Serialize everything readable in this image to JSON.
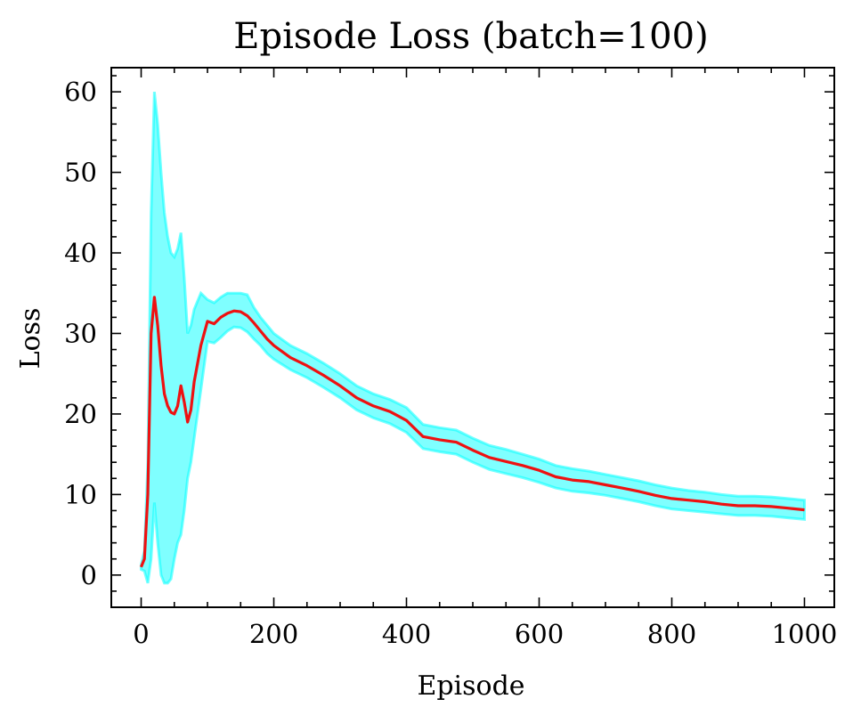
{
  "chart_data": {
    "type": "line",
    "title": "Episode Loss (batch=100)",
    "xlabel": "Episode",
    "ylabel": "Loss",
    "xlim": [
      -45,
      1045
    ],
    "ylim": [
      -4,
      63
    ],
    "xticks": [
      0,
      200,
      400,
      600,
      800,
      1000
    ],
    "yticks": [
      0,
      10,
      20,
      30,
      40,
      50,
      60
    ],
    "x_minor_step": 50,
    "y_minor_step": 2,
    "grid": false,
    "colors": {
      "mean": "#ee1111",
      "band": "#00ffff"
    },
    "series": [
      {
        "style": "line",
        "x": [
          0,
          5,
          10,
          15,
          20,
          25,
          30,
          35,
          40,
          45,
          50,
          55,
          60,
          65,
          70,
          75,
          80,
          90,
          100,
          110,
          120,
          130,
          140,
          150,
          160,
          170,
          180,
          190,
          200,
          225,
          250,
          275,
          300,
          325,
          350,
          375,
          400,
          425,
          450,
          475,
          500,
          525,
          550,
          575,
          600,
          625,
          650,
          675,
          700,
          725,
          750,
          775,
          800,
          825,
          850,
          875,
          900,
          925,
          950,
          975,
          1000
        ],
        "y": [
          1,
          2,
          10,
          30,
          34.5,
          31,
          26,
          22.5,
          21,
          20.2,
          20,
          21,
          23.5,
          21.5,
          19,
          20.5,
          24,
          28.5,
          31.5,
          31.2,
          32,
          32.5,
          32.8,
          32.7,
          32.2,
          31.3,
          30.3,
          29.3,
          28.5,
          27,
          26,
          24.8,
          23.5,
          22,
          21,
          20.3,
          19.2,
          17.2,
          16.8,
          16.5,
          15.5,
          14.6,
          14.1,
          13.6,
          13,
          12.2,
          11.8,
          11.6,
          11.2,
          10.8,
          10.4,
          9.9,
          9.5,
          9.3,
          9.1,
          8.8,
          8.6,
          8.6,
          8.5,
          8.3,
          8.1
        ]
      },
      {
        "style": "band",
        "x": [
          0,
          5,
          10,
          15,
          20,
          25,
          30,
          35,
          40,
          45,
          50,
          55,
          60,
          65,
          70,
          75,
          80,
          90,
          100,
          110,
          120,
          130,
          140,
          150,
          160,
          170,
          180,
          190,
          200,
          225,
          250,
          275,
          300,
          325,
          350,
          375,
          400,
          425,
          450,
          475,
          500,
          525,
          550,
          575,
          600,
          625,
          650,
          675,
          700,
          725,
          750,
          775,
          800,
          825,
          850,
          875,
          900,
          925,
          950,
          975,
          1000
        ],
        "y_upper": [
          1.3,
          3,
          14,
          45,
          60,
          56,
          50,
          45,
          42,
          40,
          39.5,
          40.5,
          42.5,
          37,
          30,
          31,
          33,
          35,
          34.2,
          33.8,
          34.5,
          35,
          35,
          35,
          34.8,
          33.2,
          32,
          31,
          30,
          28.5,
          27.5,
          26.3,
          25,
          23.5,
          22.5,
          21.8,
          20.8,
          18.7,
          18.3,
          18,
          17,
          16.1,
          15.6,
          15,
          14.4,
          13.6,
          13.2,
          12.9,
          12.5,
          12.1,
          11.7,
          11.2,
          10.8,
          10.5,
          10.3,
          10,
          9.8,
          9.8,
          9.7,
          9.5,
          9.3
        ],
        "y_lower": [
          0.7,
          0.5,
          -1,
          2,
          9,
          4,
          0,
          -1,
          -1,
          -0.5,
          2,
          4,
          5,
          8,
          12,
          14,
          17,
          23,
          29,
          28.8,
          29.5,
          30.3,
          30.8,
          30.7,
          30.2,
          29.3,
          28.5,
          27.5,
          26.8,
          25.5,
          24.5,
          23.3,
          22,
          20.5,
          19.5,
          18.8,
          17.7,
          15.7,
          15.3,
          15,
          14,
          13.1,
          12.6,
          12.1,
          11.5,
          10.8,
          10.4,
          10.2,
          9.9,
          9.5,
          9.1,
          8.6,
          8.2,
          8,
          7.8,
          7.6,
          7.4,
          7.4,
          7.3,
          7.1,
          6.9
        ]
      }
    ]
  }
}
